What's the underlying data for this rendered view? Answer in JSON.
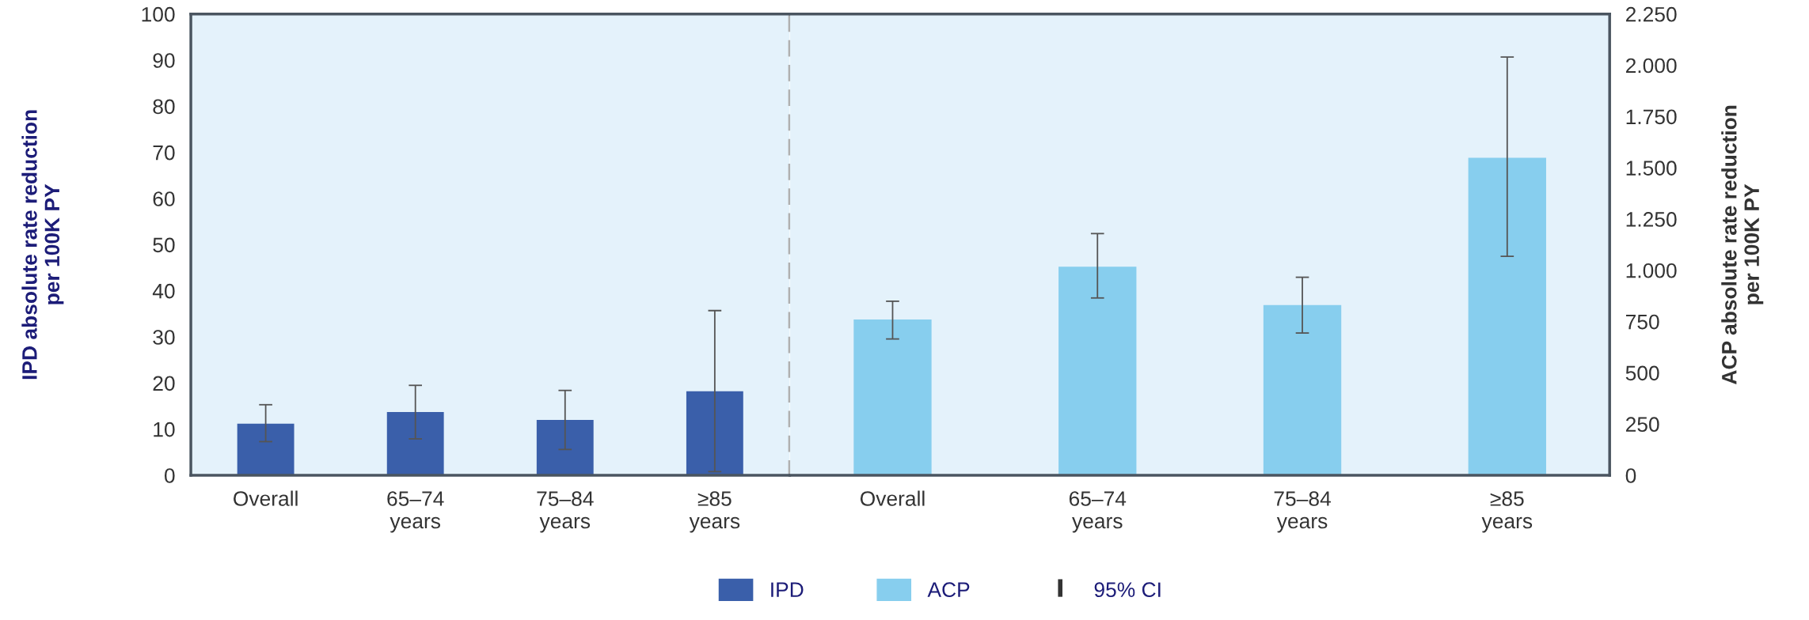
{
  "chart_data": [
    {
      "type": "bar",
      "categories": [
        "Overall",
        "65–74\nyears",
        "75–84\nyears",
        "≥85\nyears"
      ],
      "ylabel": "IPD absolute rate reduction\nper 100K PY",
      "ylim": [
        0,
        100
      ],
      "yticks": [
        0,
        10,
        20,
        30,
        40,
        50,
        60,
        70,
        80,
        90,
        100
      ],
      "legend": "bottom",
      "series": [
        {
          "name": "IPD",
          "color": "#3a5faa",
          "values": [
            11.2,
            13.7,
            12.0,
            18.2
          ],
          "errors": [
            [
              7.3,
              15.3
            ],
            [
              7.9,
              19.5
            ],
            [
              5.6,
              18.4
            ],
            [
              0.8,
              35.7
            ]
          ]
        }
      ]
    },
    {
      "type": "bar",
      "categories": [
        "Overall",
        "65–74\nyears",
        "75–84\nyears",
        "≥85\nyears"
      ],
      "y2label": "ACP absolute rate reduction\nper 100K PY",
      "y2lim": [
        0,
        2250
      ],
      "y2ticks": [
        0,
        250,
        500,
        750,
        {
          "value": 1000,
          "label": "1.000"
        },
        {
          "value": 1250,
          "label": "1.250"
        },
        {
          "value": 1500,
          "label": "1.500"
        },
        {
          "value": 1750,
          "label": "1.750"
        },
        {
          "value": 2000,
          "label": "2.000"
        },
        {
          "value": 2250,
          "label": "2.250"
        }
      ],
      "legend": "bottom",
      "annotations": [
        "95% CI"
      ],
      "series": [
        {
          "name": "ACP",
          "color": "#87ceee",
          "axis": "y2",
          "values": [
            760,
            1017,
            830,
            1549
          ],
          "errors": [
            [
              665,
              849
            ],
            [
              865,
              1179
            ],
            [
              694,
              966
            ],
            [
              1068,
              2040
            ]
          ]
        }
      ]
    }
  ]
}
